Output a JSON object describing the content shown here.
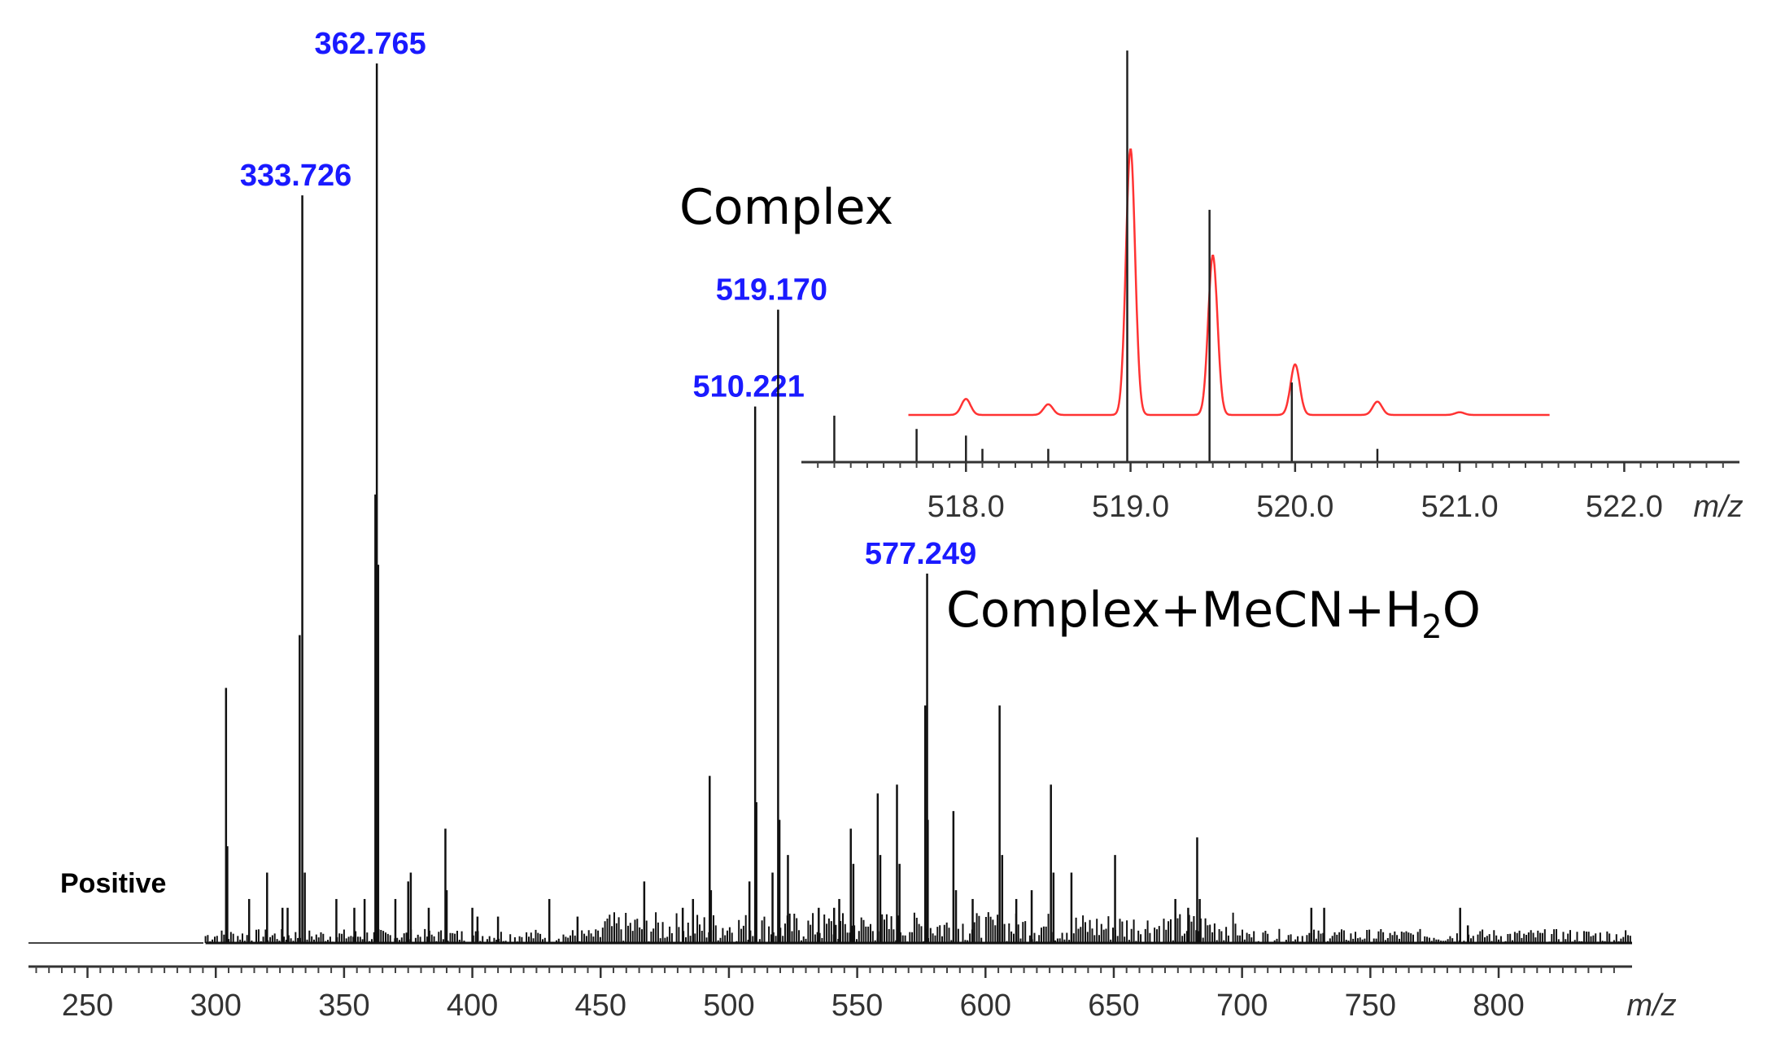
{
  "chart_data": [
    {
      "type": "bar",
      "title": "",
      "xlabel": "m/z",
      "ylabel": "",
      "xlim": [
        227,
        852
      ],
      "ylim": [
        0,
        100
      ],
      "xticks": [
        250,
        300,
        350,
        400,
        450,
        500,
        550,
        600,
        650,
        700,
        750,
        800
      ],
      "grid": false,
      "mode_label": "Positive",
      "annotations": {
        "complex": "Complex",
        "complex_adduct_main": "Complex+MeCN+H",
        "complex_adduct_sub": "2",
        "complex_adduct_tail": "O"
      },
      "labeled_peaks": [
        {
          "mz": 333.726,
          "label": "333.726",
          "intensity": 85
        },
        {
          "mz": 362.765,
          "label": "362.765",
          "intensity": 100
        },
        {
          "mz": 510.221,
          "label": "510.221",
          "intensity": 61
        },
        {
          "mz": 519.17,
          "label": "519.170",
          "intensity": 72
        },
        {
          "mz": 577.249,
          "label": "577.249",
          "intensity": 42
        }
      ],
      "peaks": [
        {
          "mz": 304.0,
          "intensity": 29
        },
        {
          "mz": 304.5,
          "intensity": 11
        },
        {
          "mz": 313.0,
          "intensity": 5
        },
        {
          "mz": 320.0,
          "intensity": 8
        },
        {
          "mz": 326.0,
          "intensity": 4
        },
        {
          "mz": 328.0,
          "intensity": 4
        },
        {
          "mz": 332.7,
          "intensity": 35
        },
        {
          "mz": 334.7,
          "intensity": 8
        },
        {
          "mz": 347.0,
          "intensity": 5
        },
        {
          "mz": 354.0,
          "intensity": 4
        },
        {
          "mz": 358.0,
          "intensity": 5
        },
        {
          "mz": 362.2,
          "intensity": 51
        },
        {
          "mz": 363.3,
          "intensity": 43
        },
        {
          "mz": 370.0,
          "intensity": 5
        },
        {
          "mz": 375.0,
          "intensity": 7
        },
        {
          "mz": 376.0,
          "intensity": 8
        },
        {
          "mz": 383.0,
          "intensity": 4
        },
        {
          "mz": 389.5,
          "intensity": 13
        },
        {
          "mz": 390.0,
          "intensity": 6
        },
        {
          "mz": 400.0,
          "intensity": 4
        },
        {
          "mz": 402.0,
          "intensity": 3
        },
        {
          "mz": 410.0,
          "intensity": 3
        },
        {
          "mz": 430.0,
          "intensity": 5
        },
        {
          "mz": 441.0,
          "intensity": 3
        },
        {
          "mz": 467.0,
          "intensity": 7
        },
        {
          "mz": 482.0,
          "intensity": 4
        },
        {
          "mz": 486.0,
          "intensity": 5
        },
        {
          "mz": 492.5,
          "intensity": 19
        },
        {
          "mz": 493.0,
          "intensity": 6
        },
        {
          "mz": 508.0,
          "intensity": 7
        },
        {
          "mz": 510.7,
          "intensity": 16
        },
        {
          "mz": 517.0,
          "intensity": 8
        },
        {
          "mz": 519.7,
          "intensity": 14
        },
        {
          "mz": 523.0,
          "intensity": 10
        },
        {
          "mz": 535.0,
          "intensity": 4
        },
        {
          "mz": 541.0,
          "intensity": 4
        },
        {
          "mz": 543.0,
          "intensity": 5
        },
        {
          "mz": 547.5,
          "intensity": 13
        },
        {
          "mz": 548.5,
          "intensity": 9
        },
        {
          "mz": 558.0,
          "intensity": 17
        },
        {
          "mz": 559.0,
          "intensity": 10
        },
        {
          "mz": 565.5,
          "intensity": 18
        },
        {
          "mz": 566.5,
          "intensity": 9
        },
        {
          "mz": 576.5,
          "intensity": 27
        },
        {
          "mz": 577.5,
          "intensity": 14
        },
        {
          "mz": 587.5,
          "intensity": 15
        },
        {
          "mz": 588.5,
          "intensity": 6
        },
        {
          "mz": 595.0,
          "intensity": 5
        },
        {
          "mz": 605.5,
          "intensity": 27
        },
        {
          "mz": 606.5,
          "intensity": 10
        },
        {
          "mz": 612.0,
          "intensity": 5
        },
        {
          "mz": 618.0,
          "intensity": 6
        },
        {
          "mz": 625.5,
          "intensity": 18
        },
        {
          "mz": 626.5,
          "intensity": 8
        },
        {
          "mz": 633.5,
          "intensity": 8
        },
        {
          "mz": 650.5,
          "intensity": 10
        },
        {
          "mz": 674.0,
          "intensity": 5
        },
        {
          "mz": 679.0,
          "intensity": 4
        },
        {
          "mz": 682.5,
          "intensity": 12
        },
        {
          "mz": 683.5,
          "intensity": 5
        },
        {
          "mz": 727.0,
          "intensity": 4
        },
        {
          "mz": 732.0,
          "intensity": 4
        },
        {
          "mz": 785.0,
          "intensity": 4
        },
        {
          "mz": 788.0,
          "intensity": 2
        }
      ]
    },
    {
      "type": "line",
      "title": "",
      "xlabel": "m/z",
      "xlim": [
        517.0,
        522.7
      ],
      "ylim": [
        0,
        100
      ],
      "xticks": [
        518.0,
        519.0,
        520.0,
        521.0,
        522.0
      ],
      "xtick_labels": [
        "518.0",
        "519.0",
        "520.0",
        "521.0",
        "522.0"
      ],
      "grid": false,
      "colors": {
        "observed": "#222222",
        "simulated": "#ff3333"
      },
      "series": [
        {
          "name": "",
          "style": "sticks",
          "color": "#222222",
          "x": [
            517.2,
            517.7,
            518.0,
            518.1,
            518.5,
            518.98,
            519.48,
            519.98,
            520.5
          ],
          "values": [
            7,
            5,
            4,
            2,
            2,
            62,
            38,
            12,
            2
          ]
        },
        {
          "name": "",
          "style": "simulated-profile",
          "color": "#ff3333",
          "x": [
            518.0,
            518.5,
            519.0,
            519.5,
            520.0,
            520.5,
            521.0
          ],
          "values": [
            6,
            4,
            100,
            60,
            19,
            5,
            1
          ]
        }
      ]
    }
  ],
  "peak_label_color": "#1a1aff"
}
